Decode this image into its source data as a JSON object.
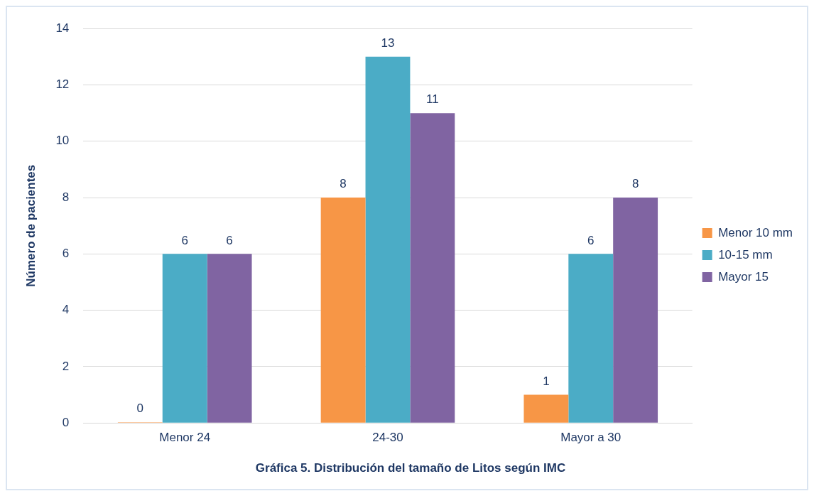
{
  "chart_data": {
    "type": "bar",
    "title": "Gráfica 5. Distribución del tamaño de Litos según IMC",
    "ylabel": "Número de pacientes",
    "categories": [
      "Menor 24",
      "24-30",
      "Mayor a 30"
    ],
    "series": [
      {
        "name": "Menor 10 mm",
        "color": "#f79646",
        "values": [
          0,
          8,
          1
        ]
      },
      {
        "name": "10-15 mm",
        "color": "#4bacc6",
        "values": [
          6,
          13,
          6
        ]
      },
      {
        "name": "Mayor 15",
        "color": "#8064a2",
        "values": [
          6,
          11,
          8
        ]
      }
    ],
    "ylim": [
      0,
      14
    ],
    "yticks": [
      0,
      2,
      4,
      6,
      8,
      10,
      12,
      14
    ],
    "grid": "y",
    "legend": "right",
    "data_labels": true
  }
}
